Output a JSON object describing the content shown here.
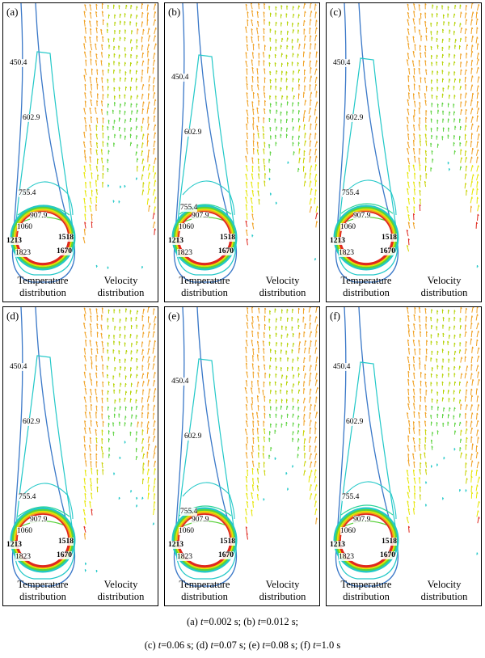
{
  "panels": [
    {
      "label": "(a)"
    },
    {
      "label": "(b)"
    },
    {
      "label": "(c)"
    },
    {
      "label": "(d)"
    },
    {
      "label": "(e)"
    },
    {
      "label": "(f)"
    }
  ],
  "panel_captions": {
    "temperature": [
      "Temperature",
      "distribution"
    ],
    "velocity": [
      "Velocity",
      "distribution"
    ]
  },
  "contour_labels": [
    "450.4",
    "602.9",
    "755.4",
    "907.9",
    "1060",
    "1213",
    "1518",
    "1823",
    "1670"
  ],
  "caption": {
    "line1": [
      {
        "pre": "(a) ",
        "var": "t",
        "val": "=0.002 s; "
      },
      {
        "pre": "(b) ",
        "var": "t",
        "val": "=0.012 s;"
      }
    ],
    "line2": [
      {
        "pre": "(c) ",
        "var": "t",
        "val": "=0.06 s; "
      },
      {
        "pre": "(d) ",
        "var": "t",
        "val": "=0.07 s; "
      },
      {
        "pre": "(e) ",
        "var": "t",
        "val": "=0.08 s; "
      },
      {
        "pre": "(f) ",
        "var": "t",
        "val": "=1.0 s"
      }
    ]
  },
  "colors": {
    "blue": "#3a78c8",
    "cyan": "#22c8c8",
    "green": "#5ad23c",
    "yellow": "#e6e600",
    "orange": "#f0a020",
    "red": "#e0281e"
  }
}
